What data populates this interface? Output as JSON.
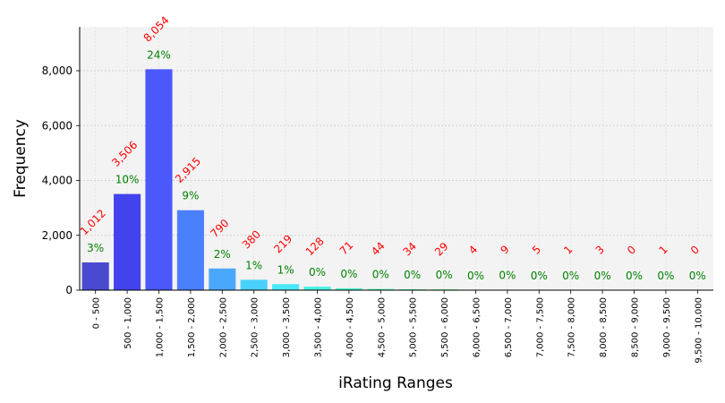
{
  "chart_data": {
    "type": "bar",
    "xlabel": "iRating Ranges",
    "ylabel": "Frequency",
    "ylim": [
      0,
      9600
    ],
    "yticks": [
      0,
      2000,
      4000,
      6000,
      8000
    ],
    "ytick_labels": [
      "0",
      "2,000",
      "4,000",
      "6,000",
      "8,000"
    ],
    "grid": true,
    "categories": [
      "0 - 500",
      "500 - 1,000",
      "1,000 - 1,500",
      "1,500 - 2,000",
      "2,000 - 2,500",
      "2,500 - 3,000",
      "3,000 - 3,500",
      "3,500 - 4,000",
      "4,000 - 4,500",
      "4,500 - 5,000",
      "5,000 - 5,500",
      "5,500 - 6,000",
      "6,000 - 6,500",
      "6,500 - 7,000",
      "7,000 - 7,500",
      "7,500 - 8,000",
      "8,000 - 8,500",
      "8,500 - 9,000",
      "9,000 - 9,500",
      "9,500 - 10,000"
    ],
    "values": [
      1012,
      3506,
      8054,
      2915,
      790,
      380,
      219,
      128,
      71,
      44,
      34,
      29,
      4,
      9,
      5,
      1,
      3,
      0,
      1,
      0
    ],
    "value_labels": [
      "1,012",
      "3,506",
      "8,054",
      "2,915",
      "790",
      "380",
      "219",
      "128",
      "71",
      "44",
      "34",
      "29",
      "4",
      "9",
      "5",
      "1",
      "3",
      "0",
      "1",
      "0"
    ],
    "percent_labels": [
      "3%",
      "10%",
      "24%",
      "9%",
      "2%",
      "1%",
      "1%",
      "0%",
      "0%",
      "0%",
      "0%",
      "0%",
      "0%",
      "0%",
      "0%",
      "0%",
      "0%",
      "0%",
      "0%",
      "0%"
    ],
    "bar_colors": [
      "#4a4ad0",
      "#4343ee",
      "#4a58fc",
      "#4a80fc",
      "#4aa8fc",
      "#4ad0fc",
      "#4ae8f8",
      "#4af0e0",
      "#4af5c8",
      "#50f8b0",
      "#60f8a0",
      "#70f890",
      "#80f880",
      "#90f870",
      "#a0f860",
      "#b0f850",
      "#c0f840",
      "#d0f830",
      "#e0f020",
      "#f0e810"
    ],
    "value_label_color": "#ff0000",
    "percent_label_color": "#008000",
    "plot_background": "#f3f3f3"
  }
}
